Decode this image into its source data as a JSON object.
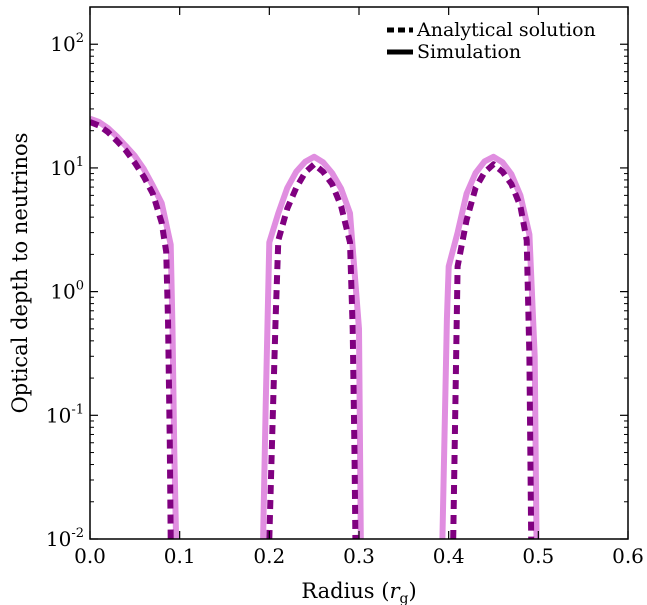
{
  "chart_data": {
    "type": "line",
    "title": "",
    "xlabel": "Radius (r_g)",
    "ylabel": "Optical depth to neutrinos",
    "xlim": [
      0.0,
      0.6
    ],
    "ylim": [
      0.01,
      200
    ],
    "yscale": "log",
    "grid": false,
    "legend_position": "top-right",
    "x_ticks": [
      {
        "value": 0.0,
        "label": "0.0"
      },
      {
        "value": 0.1,
        "label": "0.1"
      },
      {
        "value": 0.2,
        "label": "0.2"
      },
      {
        "value": 0.3,
        "label": "0.3"
      },
      {
        "value": 0.4,
        "label": "0.4"
      },
      {
        "value": 0.5,
        "label": "0.5"
      },
      {
        "value": 0.6,
        "label": "0.6"
      }
    ],
    "y_ticks": [
      {
        "value": 0.01,
        "base": "10",
        "exp": "-2"
      },
      {
        "value": 0.1,
        "base": "10",
        "exp": "-1"
      },
      {
        "value": 1,
        "base": "10",
        "exp": "0"
      },
      {
        "value": 10,
        "base": "10",
        "exp": "1"
      },
      {
        "value": 100,
        "base": "10",
        "exp": "2"
      }
    ],
    "series": [
      {
        "name": "Simulation",
        "style": "solid",
        "color": "#e08ee0",
        "segments": [
          {
            "x": [
              0.0,
              0.01,
              0.02,
              0.03,
              0.04,
              0.05,
              0.06,
              0.07,
              0.08,
              0.09,
              0.092,
              0.094,
              0.096
            ],
            "y": [
              25,
              23.5,
              21,
              18,
              15,
              12.5,
              9.8,
              7.2,
              5.2,
              2.4,
              0.5,
              0.05,
              0.01
            ]
          },
          {
            "x": [
              0.193,
              0.196,
              0.2,
              0.21,
              0.22,
              0.23,
              0.24,
              0.25,
              0.26,
              0.27,
              0.28,
              0.29,
              0.3,
              0.302
            ],
            "y": [
              0.01,
              0.12,
              2.5,
              4.3,
              6.9,
              9.3,
              11.2,
              12.3,
              11.1,
              9.1,
              6.8,
              4.3,
              0.5,
              0.01
            ]
          },
          {
            "x": [
              0.393,
              0.398,
              0.4,
              0.41,
              0.42,
              0.43,
              0.44,
              0.45,
              0.46,
              0.47,
              0.48,
              0.49,
              0.496,
              0.498
            ],
            "y": [
              0.01,
              0.6,
              1.6,
              3.0,
              6.2,
              9.1,
              11.3,
              12.3,
              11.1,
              8.9,
              6.0,
              2.9,
              0.3,
              0.01
            ]
          }
        ]
      },
      {
        "name": "Analytical solution",
        "style": "dashed",
        "color": "#800080",
        "segments": [
          {
            "x": [
              0.0,
              0.01,
              0.02,
              0.03,
              0.04,
              0.05,
              0.06,
              0.07,
              0.08,
              0.085,
              0.087,
              0.089,
              0.09
            ],
            "y": [
              23.5,
              22,
              19.5,
              16.5,
              13.8,
              11,
              8.5,
              6.2,
              3.6,
              2.1,
              0.6,
              0.06,
              0.01
            ]
          },
          {
            "x": [
              0.2,
              0.203,
              0.207,
              0.21,
              0.22,
              0.23,
              0.24,
              0.25,
              0.26,
              0.27,
              0.28,
              0.29,
              0.293,
              0.295,
              0.296
            ],
            "y": [
              0.01,
              0.06,
              0.6,
              2.6,
              4.7,
              6.9,
              9.2,
              10.7,
              9.3,
              7.4,
              4.9,
              2.5,
              0.5,
              0.05,
              0.01
            ]
          },
          {
            "x": [
              0.405,
              0.408,
              0.41,
              0.42,
              0.43,
              0.44,
              0.45,
              0.46,
              0.47,
              0.48,
              0.487,
              0.49,
              0.492
            ],
            "y": [
              0.01,
              0.2,
              1.6,
              3.8,
              6.9,
              9.2,
              10.7,
              9.3,
              7.4,
              4.9,
              2.6,
              0.3,
              0.01
            ]
          }
        ]
      }
    ]
  },
  "legend": {
    "items": [
      {
        "label": "Analytical solution",
        "style": "dashed"
      },
      {
        "label": "Simulation",
        "style": "solid"
      }
    ]
  },
  "axes": {
    "xlabel_text": "Radius (",
    "xlabel_symbol": "r",
    "xlabel_subscript": "g",
    "xlabel_close": ")",
    "ylabel_text": "Optical depth to neutrinos"
  }
}
